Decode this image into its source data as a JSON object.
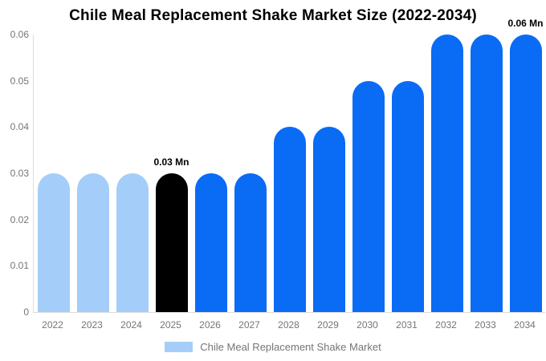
{
  "chart_data": {
    "type": "bar",
    "title": "Chile Meal Replacement Shake Market Size (2022-2034)",
    "unit": "Mn",
    "categories": [
      "2022",
      "2023",
      "2024",
      "2025",
      "2026",
      "2027",
      "2028",
      "2029",
      "2030",
      "2031",
      "2032",
      "2033",
      "2034"
    ],
    "values": [
      0.03,
      0.03,
      0.03,
      0.03,
      0.03,
      0.03,
      0.04,
      0.04,
      0.05,
      0.05,
      0.06,
      0.06,
      0.06
    ],
    "bar_colors": [
      "#A5CDF9",
      "#A5CDF9",
      "#A5CDF9",
      "#000000",
      "#0A6BF5",
      "#0A6BF5",
      "#0A6BF5",
      "#0A6BF5",
      "#0A6BF5",
      "#0A6BF5",
      "#0A6BF5",
      "#0A6BF5",
      "#0A6BF5"
    ],
    "annotations": [
      {
        "category": "2025",
        "label": "0.03 Mn"
      },
      {
        "category": "2034",
        "label": "0.06 Mn"
      }
    ],
    "y_ticks": [
      "0",
      "0.01",
      "0.02",
      "0.03",
      "0.04",
      "0.05",
      "0.06"
    ],
    "ylim": [
      0,
      0.06
    ],
    "xlabel": "",
    "ylabel": "",
    "grid": false,
    "legend_position": "bottom",
    "legend": [
      {
        "label": "Chile Meal Replacement Shake Market",
        "color": "#A5CDF9"
      }
    ]
  },
  "colors": {
    "axis_line": "#DEDEDE",
    "tick_text": "#757575",
    "title_text": "#000000",
    "annotation_text": "#000000",
    "legend_text": "#757575",
    "background": "#FFFFFF"
  }
}
